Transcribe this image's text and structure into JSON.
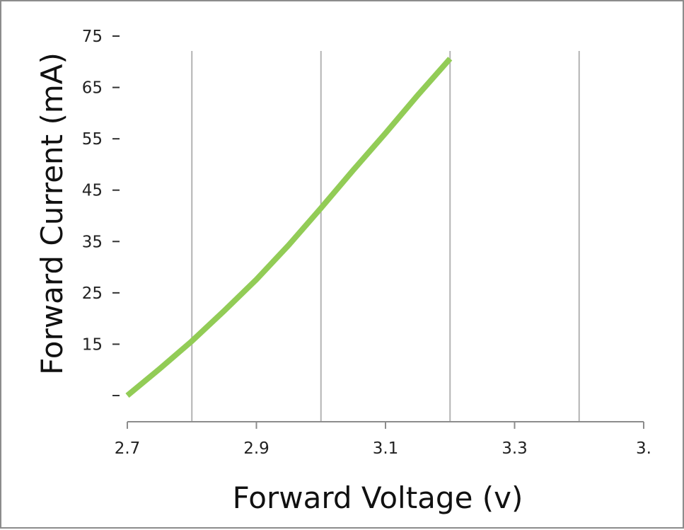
{
  "chart_data": {
    "type": "line",
    "title": "",
    "xlabel": "Forward Voltage (v)",
    "ylabel": "Forward Current (mA)",
    "x_ticks": [
      "2.7",
      "2.9",
      "3.1",
      "3.3",
      "3."
    ],
    "y_ticks": [
      "75",
      "65",
      "55",
      "45",
      "35",
      "25",
      "15",
      ""
    ],
    "xlim": [
      2.7,
      3.5
    ],
    "ylim": [
      5,
      75
    ],
    "grid": {
      "vertical": true,
      "horizontal": false
    },
    "series": [
      {
        "color": "#92cc56",
        "x": [
          2.7,
          2.75,
          2.8,
          2.85,
          2.9,
          2.95,
          3.0,
          3.05,
          3.1,
          3.15,
          3.2
        ],
        "y": [
          5,
          10.2,
          15.6,
          21.5,
          27.6,
          34.3,
          41.5,
          48.9,
          56.1,
          63.5,
          70.6
        ]
      }
    ]
  }
}
